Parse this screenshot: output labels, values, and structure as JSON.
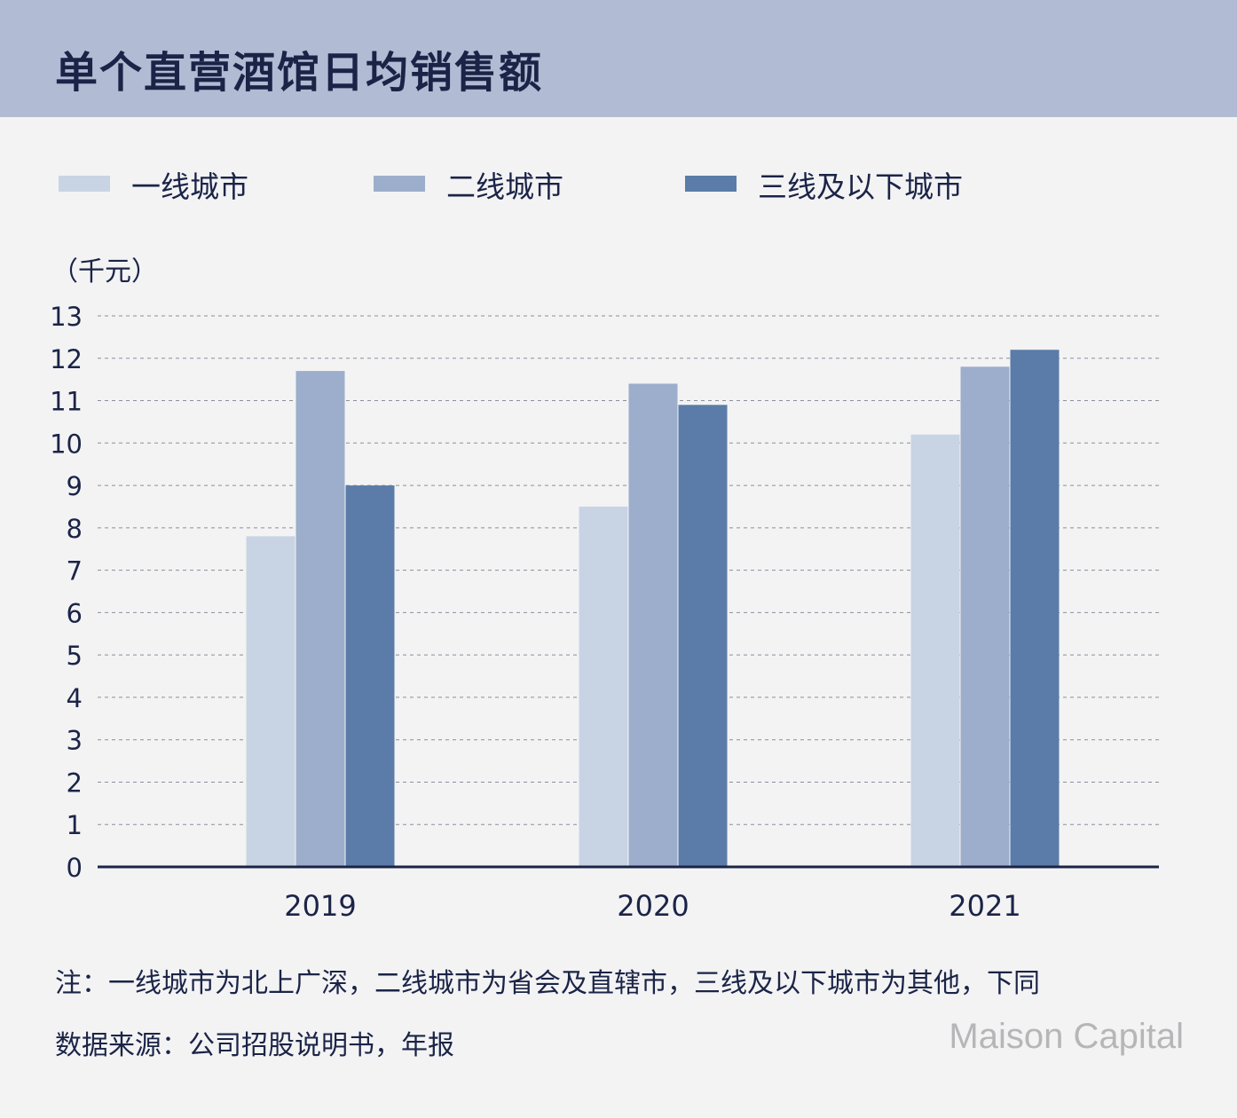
{
  "header": {
    "title": "单个直营酒馆日均销售额"
  },
  "legend": [
    {
      "label": "一线城市",
      "color": "#c8d4e4"
    },
    {
      "label": "二线城市",
      "color": "#9caecb"
    },
    {
      "label": "三线及以下城市",
      "color": "#5b7ca8"
    }
  ],
  "chart_data": {
    "type": "bar",
    "categories": [
      "2019",
      "2020",
      "2021"
    ],
    "series": [
      {
        "name": "一线城市",
        "values": [
          7.8,
          8.5,
          10.2
        ]
      },
      {
        "name": "二线城市",
        "values": [
          11.7,
          11.4,
          11.8
        ]
      },
      {
        "name": "三线及以下城市",
        "values": [
          9.0,
          10.9,
          12.2
        ]
      }
    ],
    "ylabel": "（千元）",
    "ylim": [
      0,
      13
    ],
    "yticks": [
      0,
      1,
      2,
      3,
      4,
      5,
      6,
      7,
      8,
      9,
      10,
      11,
      12,
      13
    ],
    "grid": true,
    "legend_position": "top-left"
  },
  "footer": {
    "note": "注：一线城市为北上广深，二线城市为省会及直辖市，三线及以下城市为其他，下同",
    "source": "数据来源：公司招股说明书，年报",
    "logo": "Maison Capital"
  }
}
